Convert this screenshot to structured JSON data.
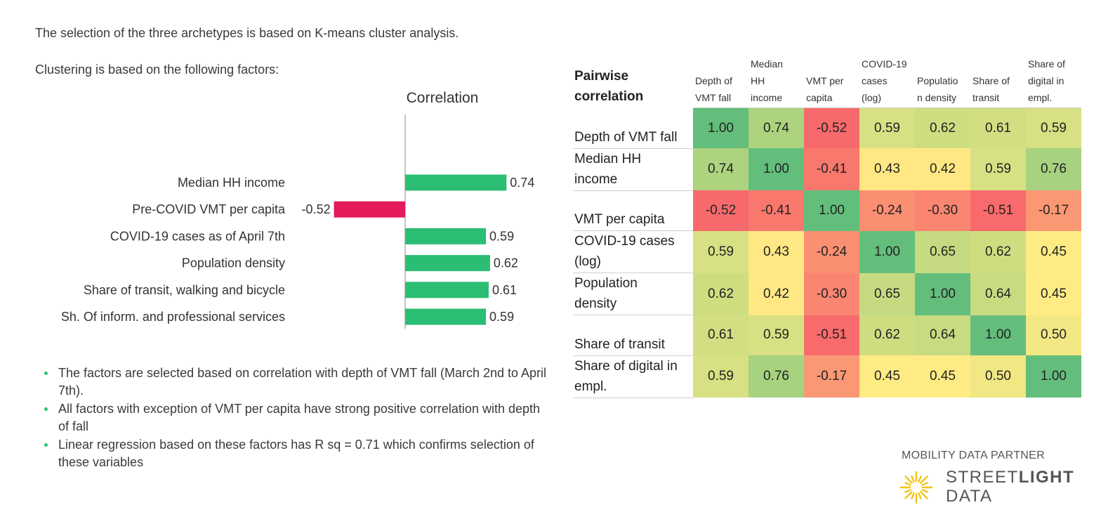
{
  "intro": {
    "line1": "The selection of the three archetypes is based on K-means cluster analysis.",
    "line2": "Clustering is based on the following factors:"
  },
  "chart_data": [
    {
      "type": "bar",
      "orientation": "horizontal",
      "title": "Correlation",
      "categories": [
        "Median HH income",
        "Pre-COVID VMT per capita",
        "COVID-19 cases as of April 7th",
        "Population density",
        "Share of transit, walking and bicycle",
        "Sh. Of inform. and professional services"
      ],
      "values": [
        0.74,
        -0.52,
        0.59,
        0.62,
        0.61,
        0.59
      ],
      "value_labels": [
        "0.74",
        "-0.52",
        "0.59",
        "0.62",
        "0.61",
        "0.59"
      ],
      "xlim": [
        -0.8,
        0.8
      ],
      "colors": {
        "positive": "#2bbd73",
        "negative": "#e31b5b"
      },
      "grid": false,
      "legend": "none"
    },
    {
      "type": "heatmap",
      "title": "Pairwise correlation",
      "columns": [
        [
          "Depth of",
          "VMT fall"
        ],
        [
          "Median",
          "HH",
          "income"
        ],
        [
          "VMT per",
          "capita"
        ],
        [
          "COVID-19",
          "cases",
          "(log)"
        ],
        [
          "Populatio",
          "n density"
        ],
        [
          "Share of",
          "transit"
        ],
        [
          "Share of",
          "digital in",
          "empl."
        ]
      ],
      "rows": [
        [
          "Depth of VMT fall"
        ],
        [
          "Median HH",
          "income"
        ],
        [
          "VMT per capita"
        ],
        [
          "COVID-19 cases",
          "(log)"
        ],
        [
          "Population",
          "density"
        ],
        [
          "Share of transit"
        ],
        [
          "Share of digital in",
          "empl."
        ]
      ],
      "values": [
        [
          1.0,
          0.74,
          -0.52,
          0.59,
          0.62,
          0.61,
          0.59
        ],
        [
          0.74,
          1.0,
          -0.41,
          0.43,
          0.42,
          0.59,
          0.76
        ],
        [
          -0.52,
          -0.41,
          1.0,
          -0.24,
          -0.3,
          -0.51,
          -0.17
        ],
        [
          0.59,
          0.43,
          -0.24,
          1.0,
          0.65,
          0.62,
          0.45
        ],
        [
          0.62,
          0.42,
          -0.3,
          0.65,
          1.0,
          0.64,
          0.45
        ],
        [
          0.61,
          0.59,
          -0.51,
          0.62,
          0.64,
          1.0,
          0.5
        ],
        [
          0.59,
          0.76,
          -0.17,
          0.45,
          0.45,
          0.5,
          1.0
        ]
      ],
      "value_labels": [
        [
          "1.00",
          "0.74",
          "-0.52",
          "0.59",
          "0.62",
          "0.61",
          "0.59"
        ],
        [
          "0.74",
          "1.00",
          "-0.41",
          "0.43",
          "0.42",
          "0.59",
          "0.76"
        ],
        [
          "-0.52",
          "-0.41",
          "1.00",
          "-0.24",
          "-0.30",
          "-0.51",
          "-0.17"
        ],
        [
          "0.59",
          "0.43",
          "-0.24",
          "1.00",
          "0.65",
          "0.62",
          "0.45"
        ],
        [
          "0.62",
          "0.42",
          "-0.30",
          "0.65",
          "1.00",
          "0.64",
          "0.45"
        ],
        [
          "0.61",
          "0.59",
          "-0.51",
          "0.62",
          "0.64",
          "1.00",
          "0.50"
        ],
        [
          "0.59",
          "0.76",
          "-0.17",
          "0.45",
          "0.45",
          "0.50",
          "1.00"
        ]
      ],
      "color_scale": {
        "low": "#f8696b",
        "mid": "#ffeb84",
        "high": "#63be7b",
        "min": -0.52,
        "mid_value": 0.45,
        "max": 1.0
      }
    }
  ],
  "bullets": [
    "The factors are selected based on correlation with depth of VMT fall (March 2nd to April 7th).",
    "All factors with exception of VMT per capita have strong positive correlation with depth of fall",
    "Linear regression based on these factors has R sq = 0.71 which confirms selection of these variables"
  ],
  "brand": {
    "tagline": "MOBILITY DATA PARTNER",
    "name_part1": "STREET",
    "name_part2": "LIGHT",
    "name_part3": "DATA",
    "logo_icon": "sunburst-icon",
    "logo_color": "#f0c419"
  }
}
